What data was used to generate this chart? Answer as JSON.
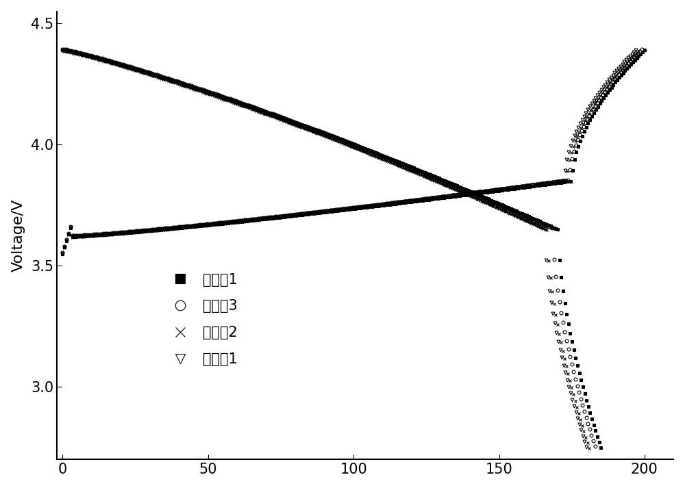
{
  "ylabel": "Voltage/V",
  "xlabel": "",
  "xlim": [
    -2,
    210
  ],
  "ylim": [
    2.7,
    4.55
  ],
  "yticks": [
    3.0,
    3.5,
    4.0,
    4.5
  ],
  "xticks": [
    0,
    50,
    100,
    150,
    200
  ],
  "legend_labels": [
    "实施例1",
    "对比例3",
    "对比例2",
    "对比例1"
  ],
  "legend_markers": [
    "s",
    "o",
    "x",
    "v"
  ],
  "legend_fillstyles": [
    "full",
    "none",
    "none",
    "none"
  ],
  "color": "#000000",
  "background_color": "#ffffff",
  "n_points": 600,
  "marker_size": 3.5,
  "markeredgewidth": 0.8
}
